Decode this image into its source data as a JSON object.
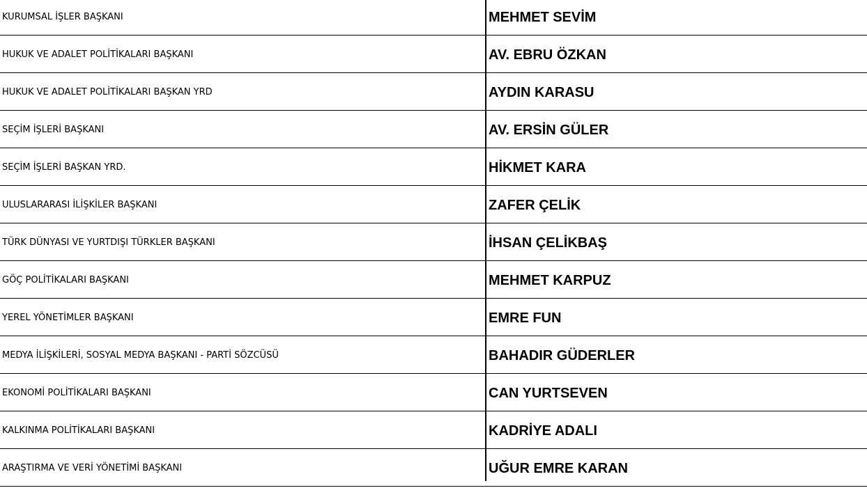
{
  "rows": [
    {
      "title": "KURUMSAL İŞLER BAŞKANI",
      "name": "MEHMET SEVİM"
    },
    {
      "title": "HUKUK VE ADALET POLİTİKALARI BAŞKANI",
      "name": "AV. EBRU ÖZKAN"
    },
    {
      "title": "HUKUK VE ADALET POLİTİKALARI BAŞKAN YRD",
      "name": "AYDIN KARASU"
    },
    {
      "title": "SEÇİM İŞLERİ BAŞKANI",
      "name": "AV. ERSİN GÜLER"
    },
    {
      "title": "SEÇİM İŞLERİ BAŞKAN YRD.",
      "name": "HİKMET KARA"
    },
    {
      "title": "ULUSLARARASI İLİŞKİLER BAŞKANI",
      "name": "ZAFER ÇELİK"
    },
    {
      "title": "TÜRK DÜNYASI VE YURTDIŞI TÜRKLER BAŞKANI",
      "name": "İHSAN ÇELİKBAŞ"
    },
    {
      "title": "GÖÇ POLİTİKALARI BAŞKANI",
      "name": "MEHMET KARPUZ"
    },
    {
      "title": "YEREL YÖNETİMLER BAŞKANI",
      "name": "EMRE FUN"
    },
    {
      "title": "MEDYA İLİŞKİLERİ, SOSYAL MEDYA BAŞKANI - PARTİ SÖZCÜSÜ",
      "name": "BAHADIR GÜDERLER"
    },
    {
      "title": "EKONOMİ POLİTİKALARI BAŞKANI",
      "name": "CAN YURTSEVEN"
    },
    {
      "title": "KALKINMA POLİTİKALARI BAŞKANI",
      "name": "KADRİYE ADALI"
    },
    {
      "title": "ARAŞTIRMA VE VERİ YÖNETİMİ BAŞKANI",
      "name": "UĞUR EMRE KARAN"
    }
  ]
}
